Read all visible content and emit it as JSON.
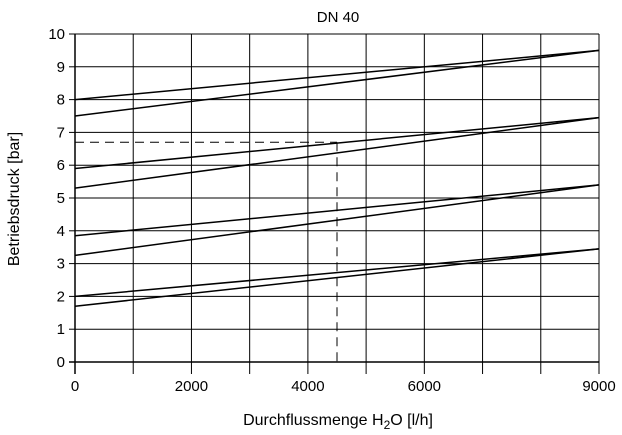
{
  "chart_data": {
    "type": "line",
    "title": "DN 40",
    "xlabel": {
      "main": "Durchflussmenge H",
      "sub": "2",
      "rest": "O [l/h]"
    },
    "ylabel": "Betriebsdruck [bar]",
    "xlim": [
      0,
      9000
    ],
    "ylim": [
      0,
      10
    ],
    "x_ticks": [
      0,
      2000,
      4000,
      6000,
      9000
    ],
    "x_tick_labels": [
      "0",
      "2000",
      "4000",
      "6000",
      "9000"
    ],
    "x_gridlines": [
      1000,
      2000,
      3000,
      4000,
      5000,
      6000,
      7000,
      8000,
      9000
    ],
    "y_ticks": [
      0,
      1,
      2,
      3,
      4,
      5,
      6,
      7,
      8,
      9,
      10
    ],
    "y_tick_labels": [
      "0",
      "1",
      "2",
      "3",
      "4",
      "5",
      "6",
      "7",
      "8",
      "9",
      "10"
    ],
    "grid": true,
    "line_color": "#000000",
    "series": [
      {
        "x": [
          0,
          9000
        ],
        "y": [
          8.0,
          9.5
        ]
      },
      {
        "x": [
          0,
          9000
        ],
        "y": [
          7.5,
          9.5
        ]
      },
      {
        "x": [
          0,
          9000
        ],
        "y": [
          5.9,
          7.45
        ]
      },
      {
        "x": [
          0,
          9000
        ],
        "y": [
          5.3,
          7.45
        ]
      },
      {
        "x": [
          0,
          9000
        ],
        "y": [
          3.85,
          5.4
        ]
      },
      {
        "x": [
          0,
          9000
        ],
        "y": [
          3.25,
          5.4
        ]
      },
      {
        "x": [
          0,
          9000
        ],
        "y": [
          2.0,
          3.45
        ]
      },
      {
        "x": [
          0,
          9000
        ],
        "y": [
          1.7,
          3.45
        ]
      }
    ],
    "annotation": {
      "type": "dashed-reading",
      "x": 4500,
      "y": 6.7
    }
  }
}
